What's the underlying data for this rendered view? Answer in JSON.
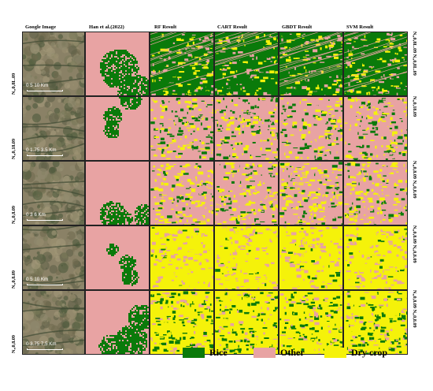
{
  "columns": [
    {
      "key": "google",
      "label": "Google Image"
    },
    {
      "key": "han",
      "label": "Han et al.(2022)"
    },
    {
      "key": "rf",
      "label": "RF Result"
    },
    {
      "key": "cart",
      "label": "CART Result"
    },
    {
      "key": "gbdt",
      "label": "GBDT Result"
    },
    {
      "key": "svm",
      "label": "SVM Result"
    }
  ],
  "rows": [
    {
      "lat_left_top": "N,,0,8L.09",
      "lat_left_bottom": "N,,0,8L.09",
      "lat_right": "N,,0,8L.09 N,,0,8L.09",
      "scale": "0    5    10 Km"
    },
    {
      "lat_left_top": "N,,0,18.09",
      "lat_left_bottom": "N,,0,18.09",
      "lat_right": "N,,0,18.09",
      "scale": "0  1.75  3.5 Km"
    },
    {
      "lat_left_top": "N,,0,8.09",
      "lat_left_bottom": "N,,0,8.09",
      "lat_right": "N,,0,8.09 N,,0,8.09",
      "scale": "0    3    6 Km"
    },
    {
      "lat_left_top": "N,,0,8.09",
      "lat_left_bottom": "N,,0,8.09",
      "lat_right": "N,,0,8.09 N,,0,8.09",
      "scale": "0    5    10 Km"
    },
    {
      "lat_left_top": "N,,0,8.09",
      "lat_left_bottom": "N,,0,8.09",
      "lat_right": "N,,0,8.09 N,,0,8.09",
      "scale": "0  3.75  7.5 Km"
    }
  ],
  "legend": [
    {
      "label": "Rice",
      "color": "#0a7a0a"
    },
    {
      "label": "Other",
      "color": "#e8a3a3"
    },
    {
      "label": "Dry crop",
      "color": "#f5f20a"
    }
  ],
  "colors": {
    "rice": "#0a7a0a",
    "other": "#e8a3a3",
    "dry": "#f5f20a",
    "satellite": "#8a8166"
  }
}
